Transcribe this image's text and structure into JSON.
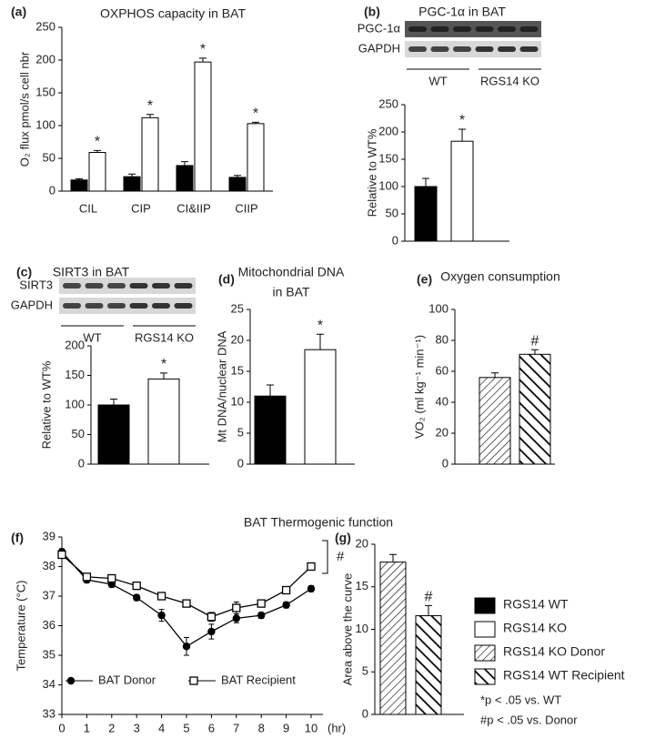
{
  "section_title": "BAT Thermogenic function",
  "notes": [
    "*p < .05 vs. WT",
    "#p < .05 vs. Donor"
  ],
  "chart_data": [
    {
      "type": "bar",
      "panel": "(a)",
      "title": "OXPHOS capacity in BAT",
      "ylabel": "O₂ flux pmol/s cell nbr",
      "categories": [
        "CIL",
        "CIP",
        "CI&IIP",
        "CIIP"
      ],
      "series": [
        {
          "name": "RGS14 WT",
          "color": "#000000",
          "values": [
            17,
            22,
            39,
            21
          ],
          "errors": [
            2,
            4,
            6,
            3
          ]
        },
        {
          "name": "RGS14 KO",
          "color": "#ffffff",
          "values": [
            59,
            112,
            197,
            103
          ],
          "errors": [
            3,
            5,
            6,
            2
          ],
          "labels": [
            "*",
            "*",
            "*",
            "*"
          ]
        }
      ],
      "ylim": [
        0,
        250
      ],
      "yticks": [
        0,
        50,
        100,
        150,
        200,
        250
      ]
    },
    {
      "type": "bar",
      "panel": "(b)",
      "title": "PGC-1α in BAT",
      "ylabel": "Relative to WT%",
      "blot": {
        "rows": [
          "PGC-1α",
          "GAPDH"
        ],
        "groups": [
          "WT",
          "RGS14 KO"
        ]
      },
      "series": [
        {
          "color": "#000000",
          "values": [
            100
          ],
          "errors": [
            15
          ]
        },
        {
          "color": "#ffffff",
          "values": [
            183
          ],
          "errors": [
            22
          ],
          "labels": [
            "*"
          ]
        }
      ],
      "ylim": [
        0,
        250
      ],
      "yticks": [
        0,
        50,
        100,
        150,
        200,
        250
      ]
    },
    {
      "type": "bar",
      "panel": "(c)",
      "title": "SIRT3 in BAT",
      "ylabel": "Relative to WT%",
      "blot": {
        "rows": [
          "SIRT3",
          "GAPDH"
        ],
        "groups": [
          "WT",
          "RGS14 KO"
        ]
      },
      "series": [
        {
          "color": "#000000",
          "values": [
            100
          ],
          "errors": [
            10
          ]
        },
        {
          "color": "#ffffff",
          "values": [
            144
          ],
          "errors": [
            10
          ],
          "labels": [
            "*"
          ]
        }
      ],
      "ylim": [
        0,
        200
      ],
      "yticks": [
        0,
        50,
        100,
        150,
        200
      ]
    },
    {
      "type": "bar",
      "panel": "(d)",
      "title": [
        "Mitochondrial DNA",
        "in BAT"
      ],
      "ylabel": "Mt DNA/nuclear DNA",
      "series": [
        {
          "color": "#000000",
          "values": [
            11
          ],
          "errors": [
            1.8
          ]
        },
        {
          "color": "#ffffff",
          "values": [
            18.5
          ],
          "errors": [
            2.5
          ],
          "labels": [
            "*"
          ]
        }
      ],
      "ylim": [
        0,
        25
      ],
      "yticks": [
        0,
        5,
        10,
        15,
        20,
        25
      ]
    },
    {
      "type": "bar",
      "panel": "(e)",
      "title": "Oxygen consumption",
      "ylabel": "VO₂ (ml kg⁻¹ min⁻¹)",
      "series": [
        {
          "name": "RGS14 KO Donor",
          "color": "#ffffff",
          "pattern": "light-hatch",
          "values": [
            56
          ],
          "errors": [
            3
          ]
        },
        {
          "name": "RGS14 WT Recipient",
          "color": "#ffffff",
          "pattern": "heavy-hatch",
          "values": [
            71
          ],
          "errors": [
            3
          ],
          "labels": [
            "#"
          ]
        }
      ],
      "ylim": [
        0,
        100
      ],
      "yticks": [
        0,
        20,
        40,
        60,
        80,
        100
      ]
    },
    {
      "type": "line",
      "panel": "(f)",
      "ylabel": "Temperature (°C)",
      "x_unit": "(hr)",
      "annotation": "#",
      "x": [
        0,
        1,
        2,
        3,
        4,
        5,
        6,
        7,
        8,
        9,
        10
      ],
      "series": [
        {
          "name": "BAT Donor",
          "color": "#000000",
          "marker": "filled-circle",
          "values": [
            38.5,
            37.55,
            37.4,
            36.95,
            36.35,
            35.3,
            35.8,
            36.25,
            36.35,
            36.7,
            37.25
          ],
          "errors": [
            0.1,
            0.1,
            0.1,
            0.1,
            0.2,
            0.3,
            0.25,
            0.15,
            0.1,
            0.1,
            0.1
          ]
        },
        {
          "name": "BAT Recipient",
          "color": "#000000",
          "marker": "open-square",
          "values": [
            38.4,
            37.65,
            37.6,
            37.35,
            37.0,
            36.75,
            36.3,
            36.6,
            36.75,
            37.2,
            38.0
          ],
          "errors": [
            0.1,
            0.1,
            0.1,
            0.1,
            0.1,
            0.1,
            0.15,
            0.2,
            0.1,
            0.1,
            0.1
          ]
        }
      ],
      "xlim": [
        0,
        10
      ],
      "xticks": [
        0,
        1,
        2,
        3,
        4,
        5,
        6,
        7,
        8,
        9,
        10
      ],
      "ylim": [
        33,
        39
      ],
      "yticks": [
        33,
        34,
        35,
        36,
        37,
        38,
        39
      ]
    },
    {
      "type": "bar",
      "panel": "(g)",
      "ylabel": "Area above the curve",
      "series": [
        {
          "color": "#ffffff",
          "pattern": "light-hatch",
          "values": [
            17.9
          ],
          "errors": [
            0.9
          ]
        },
        {
          "color": "#ffffff",
          "pattern": "heavy-hatch",
          "values": [
            11.6
          ],
          "errors": [
            1.2
          ],
          "labels": [
            "#"
          ]
        }
      ],
      "ylim": [
        0,
        20
      ],
      "yticks": [
        0,
        5,
        10,
        15,
        20
      ]
    }
  ]
}
